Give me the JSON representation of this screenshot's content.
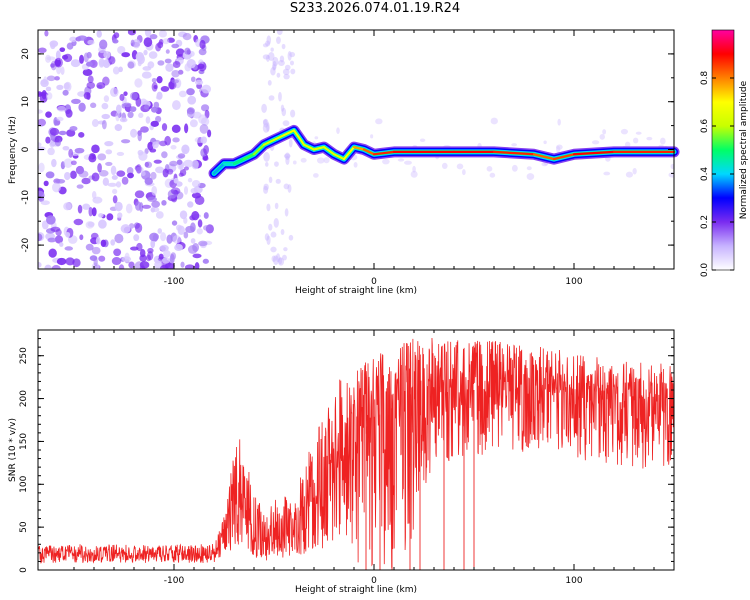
{
  "page_title": "S233.2026.074.01.19.R24",
  "chart_data": [
    {
      "type": "heatmap",
      "title": "S233.2026.074.01.19.R24",
      "xlabel": "Height of straight line (km)",
      "ylabel": "Frequency (Hz)",
      "xlim": [
        -168,
        150
      ],
      "ylim": [
        -25,
        25
      ],
      "xticks": [
        -100,
        0,
        100
      ],
      "yticks": [
        -20,
        -10,
        0,
        10,
        20
      ],
      "colorbar": {
        "label": "Normalized spectral amplitude",
        "range": [
          0,
          1
        ],
        "ticks": [
          0.0,
          0.2,
          0.4,
          0.6,
          0.8
        ],
        "colormap": [
          "#ffffff",
          "#c7b3ff",
          "#7a2cf0",
          "#0000ff",
          "#00d8ff",
          "#00ff66",
          "#c8ff00",
          "#ffff00",
          "#ff8000",
          "#ff0000",
          "#ff00a0"
        ]
      },
      "ridge": {
        "x": [
          -80,
          -75,
          -70,
          -65,
          -60,
          -55,
          -50,
          -45,
          -40,
          -35,
          -30,
          -25,
          -20,
          -15,
          -10,
          -5,
          0,
          10,
          20,
          40,
          60,
          80,
          90,
          100,
          120,
          150
        ],
        "frequency": [
          -5,
          -3,
          -3,
          -2,
          -1,
          1,
          2,
          3,
          4,
          1,
          0,
          0.5,
          -1,
          -2,
          0.5,
          0,
          -1,
          -0.5,
          -0.5,
          -0.5,
          -0.5,
          -1,
          -2,
          -1,
          -0.5,
          -0.5
        ],
        "amplitude": [
          0.3,
          0.35,
          0.4,
          0.45,
          0.5,
          0.55,
          0.6,
          0.6,
          0.65,
          0.6,
          0.6,
          0.6,
          0.6,
          0.6,
          0.7,
          0.75,
          0.8,
          0.85,
          0.85,
          0.85,
          0.85,
          0.8,
          0.75,
          0.85,
          0.85,
          0.8
        ]
      }
    },
    {
      "type": "line",
      "xlabel": "Height of straight line (km)",
      "ylabel": "SNR (10 * v/v)",
      "xlim": [
        -168,
        150
      ],
      "ylim": [
        0,
        280
      ],
      "xticks": [
        -100,
        0,
        100
      ],
      "yticks": [
        0,
        50,
        100,
        150,
        200,
        250
      ],
      "color": "#ee2222",
      "series": [
        {
          "x": [
            -168,
            -150,
            -130,
            -110,
            -90,
            -80,
            -74,
            -70,
            -66,
            -62,
            -58,
            -54,
            -50,
            -46,
            -42,
            -38,
            -34,
            -30,
            -26,
            -22,
            -18,
            -14,
            -10,
            -6,
            -2,
            2,
            6,
            10,
            14,
            18,
            22,
            26,
            30,
            40,
            50,
            60,
            70,
            80,
            90,
            100,
            110,
            120,
            130,
            140,
            150
          ],
          "y": [
            18,
            18,
            19,
            18,
            18,
            20,
            45,
            70,
            90,
            60,
            40,
            35,
            40,
            45,
            40,
            50,
            70,
            90,
            100,
            120,
            140,
            150,
            160,
            165,
            170,
            180,
            185,
            190,
            195,
            205,
            210,
            210,
            205,
            210,
            210,
            215,
            215,
            210,
            205,
            205,
            200,
            200,
            200,
            195,
            200
          ],
          "upper": [
            28,
            30,
            30,
            29,
            30,
            32,
            70,
            140,
            160,
            110,
            80,
            70,
            80,
            90,
            80,
            100,
            130,
            160,
            180,
            200,
            220,
            230,
            235,
            240,
            245,
            255,
            258,
            262,
            265,
            270,
            275,
            275,
            270,
            270,
            268,
            268,
            265,
            262,
            258,
            255,
            250,
            245,
            245,
            240,
            245
          ],
          "lower": [
            8,
            8,
            9,
            8,
            8,
            8,
            20,
            25,
            30,
            20,
            10,
            10,
            10,
            15,
            10,
            15,
            20,
            20,
            20,
            30,
            40,
            40,
            10,
            0,
            0,
            0,
            5,
            0,
            0,
            30,
            60,
            100,
            110,
            130,
            130,
            140,
            140,
            130,
            130,
            130,
            125,
            120,
            120,
            115,
            120
          ]
        }
      ]
    }
  ]
}
